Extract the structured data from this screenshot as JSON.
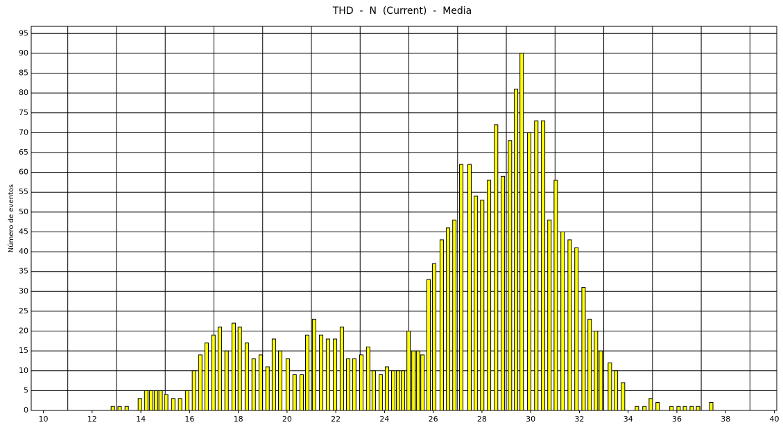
{
  "chart_data": {
    "type": "bar",
    "title": "THD  -  N  (Current)  -  Media",
    "ylabel": "Número de eventos",
    "x": [
      12.85,
      13.13,
      13.42,
      13.96,
      14.22,
      14.42,
      14.62,
      14.81,
      15.04,
      15.33,
      15.61,
      15.9,
      16.18,
      16.44,
      16.7,
      16.98,
      17.24,
      17.52,
      17.81,
      18.06,
      18.35,
      18.63,
      18.92,
      19.2,
      19.46,
      19.72,
      20.03,
      20.31,
      20.6,
      20.83,
      21.11,
      21.4,
      21.68,
      21.97,
      22.25,
      22.51,
      22.76,
      23.05,
      23.33,
      23.56,
      23.85,
      24.1,
      24.36,
      24.56,
      24.76,
      24.99,
      25.19,
      25.38,
      25.56,
      25.81,
      26.04,
      26.35,
      26.61,
      26.87,
      27.15,
      27.49,
      27.75,
      28.01,
      28.29,
      28.58,
      28.86,
      29.15,
      29.4,
      29.63,
      29.94,
      30.23,
      30.51,
      30.77,
      31.03,
      31.31,
      31.6,
      31.88,
      32.17,
      32.42,
      32.68,
      32.88,
      33.25,
      33.5,
      33.79,
      34.36,
      34.67,
      34.93,
      35.21,
      35.78,
      36.07,
      36.33,
      36.61,
      36.87,
      37.41
    ],
    "values": [
      1,
      1,
      1,
      3,
      5,
      5,
      5,
      5,
      4,
      3,
      3,
      5,
      10,
      14,
      17,
      19,
      21,
      15,
      22,
      21,
      17,
      13,
      14,
      11,
      18,
      15,
      13,
      9,
      9,
      19,
      23,
      19,
      18,
      18,
      21,
      13,
      13,
      14,
      16,
      10,
      9,
      11,
      10,
      10,
      10,
      20,
      15,
      15,
      14,
      33,
      37,
      43,
      46,
      48,
      62,
      62,
      54,
      53,
      58,
      72,
      59,
      68,
      81,
      90,
      70,
      73,
      73,
      48,
      58,
      45,
      43,
      41,
      31,
      23,
      20,
      15,
      12,
      10,
      7,
      1,
      1,
      3,
      2,
      1,
      1,
      1,
      1,
      1,
      2
    ],
    "color": "#ffff00",
    "xlim": [
      9.5,
      40.1
    ],
    "ylim": [
      0,
      96.8
    ],
    "xticks": [
      10,
      12,
      14,
      16,
      18,
      20,
      22,
      24,
      26,
      28,
      30,
      32,
      34,
      36,
      38,
      40
    ],
    "xgrid": [
      11,
      13,
      15,
      17,
      19,
      21,
      23,
      25,
      27,
      29,
      31,
      33,
      35,
      37,
      39
    ],
    "yticks": [
      0,
      5,
      10,
      15,
      20,
      25,
      30,
      35,
      40,
      45,
      50,
      55,
      60,
      65,
      70,
      75,
      80,
      85,
      90,
      95
    ],
    "grid": true
  }
}
